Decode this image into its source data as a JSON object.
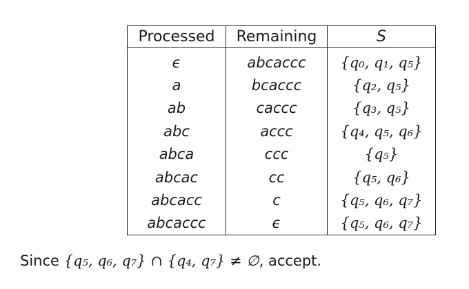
{
  "table": {
    "headers": [
      "Processed",
      "Remaining",
      "S"
    ],
    "rows": [
      {
        "processed": "ϵ",
        "remaining": "abcaccc",
        "set": "{q₀, q₁, q₅}"
      },
      {
        "processed": "a",
        "remaining": "bcaccc",
        "set": "{q₂, q₅}"
      },
      {
        "processed": "ab",
        "remaining": "caccc",
        "set": "{q₃, q₅}"
      },
      {
        "processed": "abc",
        "remaining": "accc",
        "set": "{q₄, q₅, q₆}"
      },
      {
        "processed": "abca",
        "remaining": "ccc",
        "set": "{q₅}"
      },
      {
        "processed": "abcac",
        "remaining": "cc",
        "set": "{q₅, q₆}"
      },
      {
        "processed": "abcacc",
        "remaining": "c",
        "set": "{q₅, q₆, q₇}"
      },
      {
        "processed": "abcaccc",
        "remaining": "ϵ",
        "set": "{q₅, q₆, q₇}"
      }
    ]
  },
  "conclusion": {
    "prefix": "Since ",
    "expression": "{q₅, q₆, q₇} ∩ {q₄, q₇} ≠ ∅",
    "suffix": ", accept."
  }
}
